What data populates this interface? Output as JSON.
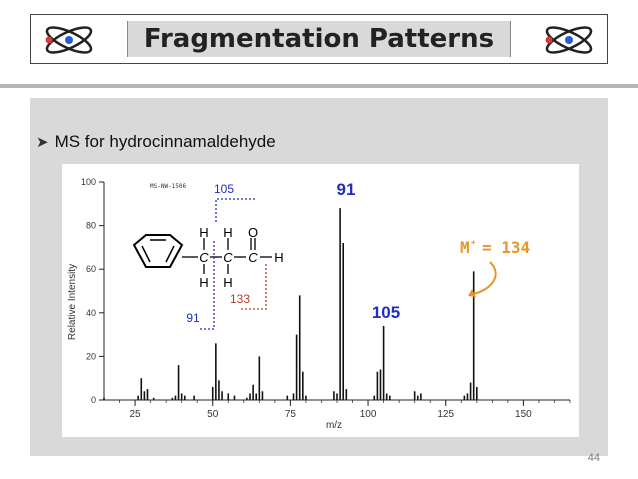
{
  "slide": {
    "title": "Fragmentation Patterns",
    "bullet": "MS for hydrocinnamaldehyde",
    "page_number": "44"
  },
  "icons": {
    "left": "atom-icon",
    "right": "atom-icon"
  },
  "colors": {
    "title_bg": "#d9d9d9",
    "panel_bg": "#d9d9d9",
    "accent_orange": "#e8962a",
    "annot_blue": "#1f2fbf",
    "annot_red": "#c0392b"
  },
  "chart_data": {
    "type": "bar",
    "code_label": "MS-NW-1506",
    "xlabel": "m/z",
    "ylabel": "Relative Intensity",
    "xlim": [
      15,
      165
    ],
    "ylim": [
      0,
      100
    ],
    "x_ticks": [
      25,
      50,
      75,
      100,
      125,
      150
    ],
    "y_ticks": [
      0,
      20,
      40,
      60,
      80,
      100
    ],
    "peaks": [
      {
        "mz": 15,
        "intensity": 1
      },
      {
        "mz": 26,
        "intensity": 2
      },
      {
        "mz": 27,
        "intensity": 10
      },
      {
        "mz": 28,
        "intensity": 4
      },
      {
        "mz": 29,
        "intensity": 5
      },
      {
        "mz": 31,
        "intensity": 1
      },
      {
        "mz": 37,
        "intensity": 1
      },
      {
        "mz": 38,
        "intensity": 2
      },
      {
        "mz": 39,
        "intensity": 16
      },
      {
        "mz": 40,
        "intensity": 3
      },
      {
        "mz": 41,
        "intensity": 2
      },
      {
        "mz": 44,
        "intensity": 2
      },
      {
        "mz": 50,
        "intensity": 6
      },
      {
        "mz": 51,
        "intensity": 26
      },
      {
        "mz": 52,
        "intensity": 9
      },
      {
        "mz": 53,
        "intensity": 4
      },
      {
        "mz": 55,
        "intensity": 3
      },
      {
        "mz": 57,
        "intensity": 2
      },
      {
        "mz": 61,
        "intensity": 1
      },
      {
        "mz": 62,
        "intensity": 3
      },
      {
        "mz": 63,
        "intensity": 7
      },
      {
        "mz": 64,
        "intensity": 3
      },
      {
        "mz": 65,
        "intensity": 20
      },
      {
        "mz": 66,
        "intensity": 4
      },
      {
        "mz": 74,
        "intensity": 2
      },
      {
        "mz": 76,
        "intensity": 3
      },
      {
        "mz": 77,
        "intensity": 30
      },
      {
        "mz": 78,
        "intensity": 48
      },
      {
        "mz": 79,
        "intensity": 13
      },
      {
        "mz": 80,
        "intensity": 2
      },
      {
        "mz": 89,
        "intensity": 4
      },
      {
        "mz": 90,
        "intensity": 3
      },
      {
        "mz": 91,
        "intensity": 88
      },
      {
        "mz": 92,
        "intensity": 72
      },
      {
        "mz": 93,
        "intensity": 5
      },
      {
        "mz": 102,
        "intensity": 2
      },
      {
        "mz": 103,
        "intensity": 13
      },
      {
        "mz": 104,
        "intensity": 14
      },
      {
        "mz": 105,
        "intensity": 34
      },
      {
        "mz": 106,
        "intensity": 3
      },
      {
        "mz": 107,
        "intensity": 2
      },
      {
        "mz": 115,
        "intensity": 4
      },
      {
        "mz": 116,
        "intensity": 2
      },
      {
        "mz": 117,
        "intensity": 3
      },
      {
        "mz": 131,
        "intensity": 2
      },
      {
        "mz": 132,
        "intensity": 3
      },
      {
        "mz": 133,
        "intensity": 8
      },
      {
        "mz": 134,
        "intensity": 59
      },
      {
        "mz": 135,
        "intensity": 6
      }
    ],
    "annotations": {
      "peak_91": "91",
      "peak_105": "105",
      "molecular_ion": "M",
      "molecular_ion_charge": "+",
      "molecular_ion_value": "= 134"
    },
    "structure": {
      "top_labels": [
        "H",
        "H",
        "O"
      ],
      "middle_labels": [
        "C",
        "C",
        "C",
        "H"
      ],
      "bottom_labels": [
        "H",
        "H"
      ],
      "frag_label_105": "105",
      "frag_label_91": "91",
      "frag_label_133": "133"
    }
  }
}
